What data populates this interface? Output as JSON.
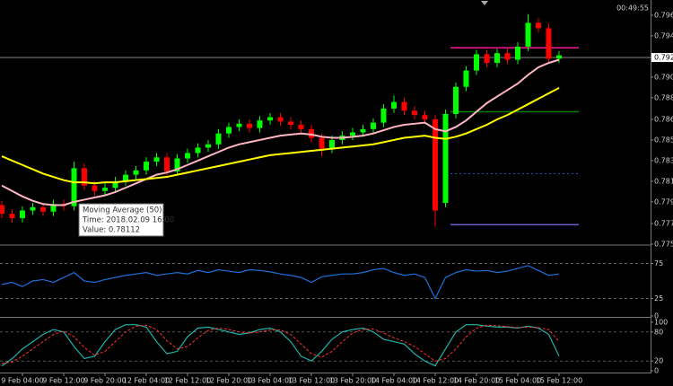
{
  "chart_data": [
    {
      "type": "candlestick",
      "clock": "00:49:55",
      "categories": [
        null,
        null,
        "9 Feb 04:00",
        null,
        null,
        null,
        "9 Feb 12:00",
        null,
        null,
        null,
        "9 Feb 20:00",
        null,
        null,
        null,
        "12 Feb 04:00",
        null,
        null,
        null,
        "12 Feb 12:00",
        null,
        null,
        null,
        "12 Feb 20:00",
        null,
        null,
        null,
        "13 Feb 04:00",
        null,
        null,
        null,
        "13 Feb 12:00",
        null,
        null,
        null,
        "13 Feb 20:00",
        null,
        null,
        null,
        "14 Feb 04:00",
        null,
        null,
        null,
        "14 Feb 12:00",
        null,
        null,
        null,
        "14 Feb 20:00",
        null,
        null,
        null,
        "15 Feb 04:00",
        null,
        null,
        null,
        "15 Feb 12:00"
      ],
      "open": [
        0.779,
        0.7782,
        0.7778,
        0.7785,
        0.7788,
        0.7784,
        0.7791,
        0.7789,
        0.7824,
        0.7808,
        0.7803,
        0.7806,
        0.7812,
        0.7818,
        0.7822,
        0.783,
        0.7834,
        0.7821,
        0.7833,
        0.7838,
        0.7843,
        0.7846,
        0.7856,
        0.7862,
        0.7865,
        0.7861,
        0.7868,
        0.7871,
        0.7867,
        0.7864,
        0.786,
        0.7852,
        0.7842,
        0.785,
        0.7854,
        0.7857,
        0.786,
        0.7866,
        0.7879,
        0.7885,
        0.7877,
        0.7873,
        0.7869,
        0.7792,
        0.7874,
        0.7899,
        0.7914,
        0.7929,
        0.7921,
        0.793,
        0.7924,
        0.7936,
        0.7958,
        0.7953,
        0.7925
      ],
      "high": [
        0.7794,
        0.7786,
        0.7789,
        0.7792,
        0.7792,
        0.7795,
        0.7795,
        0.783,
        0.7828,
        0.7812,
        0.781,
        0.7816,
        0.7822,
        0.7826,
        0.7834,
        0.7838,
        0.7838,
        0.7837,
        0.7842,
        0.7847,
        0.785,
        0.786,
        0.7866,
        0.7869,
        0.7869,
        0.7872,
        0.7875,
        0.7875,
        0.7871,
        0.7868,
        0.7864,
        0.7856,
        0.7854,
        0.7858,
        0.7861,
        0.7864,
        0.787,
        0.7883,
        0.7891,
        0.7889,
        0.7881,
        0.7877,
        0.7873,
        0.7878,
        0.7903,
        0.7918,
        0.7933,
        0.7933,
        0.7934,
        0.7934,
        0.794,
        0.7966,
        0.7962,
        0.7957,
        0.7932
      ],
      "low": [
        0.7778,
        0.7774,
        0.7774,
        0.7781,
        0.778,
        0.778,
        0.7785,
        0.7785,
        0.7804,
        0.7799,
        0.7799,
        0.7802,
        0.7808,
        0.7814,
        0.7818,
        0.7826,
        0.7817,
        0.7817,
        0.7829,
        0.7834,
        0.7839,
        0.7842,
        0.7852,
        0.7858,
        0.7857,
        0.7857,
        0.7864,
        0.7863,
        0.786,
        0.7856,
        0.7848,
        0.7835,
        0.7838,
        0.7846,
        0.785,
        0.7853,
        0.7856,
        0.7862,
        0.7875,
        0.7873,
        0.7869,
        0.7865,
        0.777,
        0.7788,
        0.787,
        0.7895,
        0.791,
        0.7917,
        0.7917,
        0.792,
        0.792,
        0.7932,
        0.7949,
        0.7921,
        0.7921
      ],
      "close": [
        0.7782,
        0.7778,
        0.7785,
        0.7788,
        0.7784,
        0.7791,
        0.7789,
        0.7824,
        0.7808,
        0.7803,
        0.7806,
        0.7812,
        0.7818,
        0.7822,
        0.783,
        0.7834,
        0.7821,
        0.7833,
        0.7838,
        0.7843,
        0.7846,
        0.7856,
        0.7862,
        0.7865,
        0.7861,
        0.7868,
        0.7871,
        0.7867,
        0.7864,
        0.786,
        0.7852,
        0.7842,
        0.785,
        0.7854,
        0.7857,
        0.786,
        0.7866,
        0.7879,
        0.7885,
        0.7877,
        0.7873,
        0.7869,
        0.7785,
        0.7874,
        0.7899,
        0.7914,
        0.7929,
        0.7921,
        0.793,
        0.7924,
        0.7936,
        0.7958,
        0.7953,
        0.7925,
        0.7928
      ],
      "up_color": "#00ff00",
      "down_color": "#ff0000",
      "overlays": [
        {
          "color": "#ffb6c1",
          "values": [
            0.7808,
            0.7803,
            0.7798,
            0.7794,
            0.7791,
            0.779,
            0.779,
            0.7793,
            0.7795,
            0.7797,
            0.7799,
            0.7802,
            0.7806,
            0.781,
            0.7814,
            0.7818,
            0.782,
            0.7823,
            0.7827,
            0.7831,
            0.7835,
            0.7839,
            0.7843,
            0.7846,
            0.7848,
            0.785,
            0.7852,
            0.7854,
            0.7855,
            0.7856,
            0.7855,
            0.7853,
            0.7852,
            0.7852,
            0.7853,
            0.7854,
            0.7856,
            0.7859,
            0.7862,
            0.7864,
            0.7865,
            0.7866,
            0.786,
            0.7858,
            0.7862,
            0.7868,
            0.7876,
            0.7884,
            0.789,
            0.7896,
            0.7902,
            0.791,
            0.7917,
            0.7921,
            0.7924
          ]
        },
        {
          "color": "#ffff00",
          "values": [
            0.7835,
            0.7831,
            0.7827,
            0.7823,
            0.7819,
            0.7816,
            0.7813,
            0.7811,
            0.7811,
            0.781,
            0.7811,
            0.7811,
            0.7812,
            0.7813,
            0.7814,
            0.7815,
            0.7816,
            0.7818,
            0.782,
            0.7822,
            0.7824,
            0.7826,
            0.7828,
            0.783,
            0.7832,
            0.7834,
            0.7836,
            0.7837,
            0.7838,
            0.7839,
            0.784,
            0.7841,
            0.7842,
            0.7843,
            0.7844,
            0.7845,
            0.7846,
            0.7848,
            0.785,
            0.7852,
            0.7853,
            0.7854,
            0.7852,
            0.7851,
            0.7853,
            0.7856,
            0.786,
            0.7864,
            0.7869,
            0.7873,
            0.7878,
            0.7883,
            0.7888,
            0.7893,
            0.7898
          ]
        }
      ],
      "levels": [
        {
          "value": 0.7935,
          "color": "#ff1493",
          "style": "solid"
        },
        {
          "value": 0.7876,
          "color": "#008000",
          "style": "solid"
        },
        {
          "value": 0.7819,
          "color": "#3355cc",
          "style": "dotted"
        },
        {
          "value": 0.7772,
          "color": "#6a5acd",
          "style": "solid"
        }
      ],
      "price_line": 0.7926,
      "ylim": [
        0.7754,
        0.7979
      ],
      "yticks": [
        0.7965,
        0.7946,
        0.7926,
        0.7908,
        0.7889,
        0.7869,
        {
          "value": 0.785,
          "label": "0.7850"
        },
        0.7831,
        0.7812,
        0.7793,
        0.7773,
        0.7754
      ],
      "tooltip": {
        "title": "Moving Average (50)",
        "lines": [
          "Time: 2018.02.09 16:00",
          "Value: 0.78112"
        ]
      }
    },
    {
      "type": "line",
      "color": "#1e6fd9",
      "values": [
        45,
        48,
        42,
        50,
        52,
        48,
        55,
        62,
        50,
        48,
        52,
        55,
        58,
        60,
        62,
        58,
        60,
        62,
        60,
        65,
        62,
        66,
        64,
        62,
        66,
        65,
        63,
        60,
        58,
        55,
        48,
        56,
        58,
        60,
        60,
        62,
        66,
        68,
        62,
        58,
        60,
        55,
        25,
        55,
        62,
        66,
        64,
        65,
        62,
        64,
        68,
        72,
        65,
        58,
        60
      ],
      "ylim": [
        0,
        100
      ],
      "yticks": [
        75,
        25,
        0
      ]
    },
    {
      "type": "stochastic",
      "series": [
        {
          "color": "#20b2aa",
          "style": "solid",
          "values": [
            10,
            25,
            45,
            60,
            75,
            85,
            80,
            50,
            25,
            30,
            60,
            85,
            95,
            95,
            90,
            60,
            35,
            40,
            70,
            88,
            90,
            85,
            80,
            75,
            78,
            85,
            88,
            80,
            60,
            30,
            20,
            40,
            65,
            80,
            85,
            88,
            80,
            65,
            60,
            55,
            35,
            20,
            10,
            45,
            80,
            95,
            95,
            92,
            90,
            90,
            88,
            92,
            88,
            75,
            30
          ]
        },
        {
          "color": "#ff3030",
          "style": "dashed",
          "values": [
            15,
            18,
            30,
            45,
            60,
            75,
            82,
            70,
            48,
            32,
            40,
            60,
            80,
            92,
            94,
            85,
            62,
            45,
            50,
            68,
            83,
            88,
            85,
            80,
            78,
            80,
            84,
            84,
            75,
            55,
            35,
            28,
            40,
            60,
            78,
            85,
            86,
            78,
            68,
            60,
            50,
            35,
            20,
            25,
            45,
            70,
            88,
            94,
            93,
            91,
            89,
            90,
            89,
            85,
            60
          ]
        }
      ],
      "ylim": [
        0,
        100
      ],
      "yticks": [
        100,
        80,
        20,
        0
      ]
    }
  ]
}
